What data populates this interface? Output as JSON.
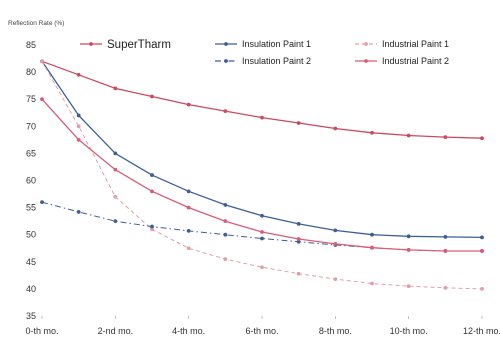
{
  "chart_data": {
    "type": "line",
    "ylabel": "Reflection Rate (%)",
    "xlabel": "",
    "categories": [
      "0-th mo.",
      "2-nd mo.",
      "4-th mo.",
      "6-th mo.",
      "8-th mo.",
      "10-th mo.",
      "12-th mo."
    ],
    "x": [
      0,
      1,
      2,
      3,
      4,
      5,
      6,
      7,
      8,
      9,
      10,
      11,
      12
    ],
    "ylim": [
      35,
      85
    ],
    "yticks": [
      35,
      40,
      45,
      50,
      55,
      60,
      65,
      70,
      75,
      80,
      85
    ],
    "grid": false,
    "legend_position": "top",
    "series": [
      {
        "name": "SuperTharm",
        "color": "#cc4a60",
        "dash": "solid",
        "values": [
          82,
          79.5,
          77,
          75.5,
          74,
          72.8,
          71.6,
          70.6,
          69.6,
          68.8,
          68.3,
          68,
          67.8
        ]
      },
      {
        "name": "Insulation Paint 1",
        "color": "#3e5f96",
        "dash": "solid",
        "values": [
          82,
          72,
          65,
          61,
          58,
          55.5,
          53.5,
          52,
          50.8,
          50,
          49.7,
          49.6,
          49.5
        ]
      },
      {
        "name": "Industrial Paint 1",
        "color": "#e0a0aa",
        "dash": "dashed",
        "values": [
          82,
          70,
          57,
          51,
          47.5,
          45.5,
          44,
          42.8,
          41.8,
          41,
          40.5,
          40.2,
          40
        ]
      },
      {
        "name": "Insulation Paint 2",
        "color": "#3e5f96",
        "dash": "dashdot",
        "values": [
          56,
          54.2,
          52.5,
          51.5,
          50.7,
          50,
          49.3,
          48.7,
          48.1,
          47.6,
          47.2,
          47,
          47
        ]
      },
      {
        "name": "Industrial Paint 2",
        "color": "#d85d78",
        "dash": "solid",
        "values": [
          75,
          67.5,
          62,
          58,
          55,
          52.5,
          50.5,
          49.2,
          48.3,
          47.6,
          47.2,
          47,
          47
        ]
      }
    ]
  }
}
